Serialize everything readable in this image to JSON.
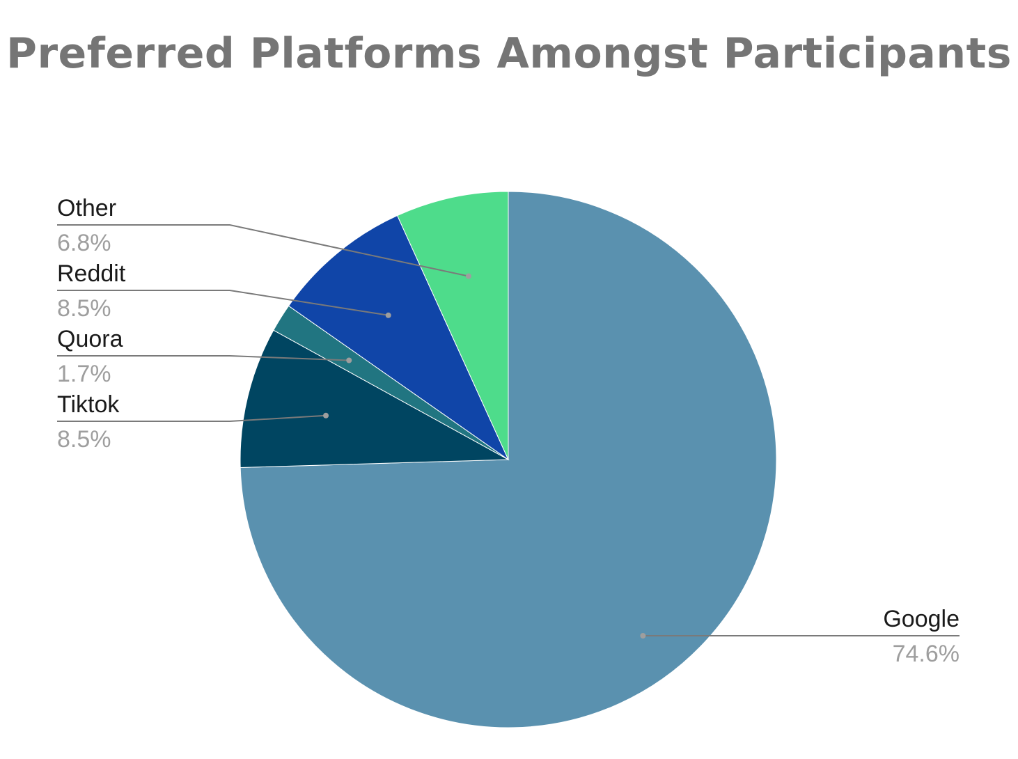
{
  "chart_data": {
    "type": "pie",
    "title": "Preferred Platforms Amongst Participants",
    "start": "top, clockwise",
    "slices": [
      {
        "label": "Google",
        "value": 74.6,
        "pct_text": "74.6%",
        "color": "#5a91af"
      },
      {
        "label": "Tiktok",
        "value": 8.5,
        "pct_text": "8.5%",
        "color": "#004561"
      },
      {
        "label": "Quora",
        "value": 1.7,
        "pct_text": "1.7%",
        "color": "#217581"
      },
      {
        "label": "Reddit",
        "value": 8.5,
        "pct_text": "8.5%",
        "color": "#1045a8"
      },
      {
        "label": "Other",
        "value": 6.8,
        "pct_text": "6.8%",
        "color": "#4edc8b"
      }
    ]
  }
}
